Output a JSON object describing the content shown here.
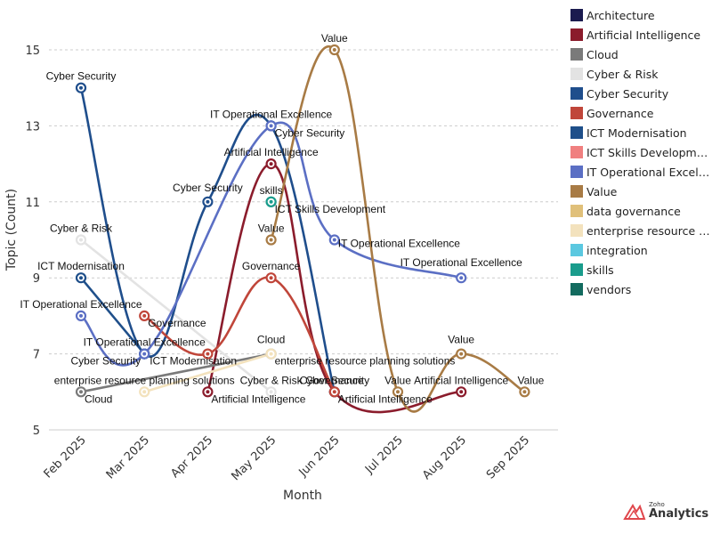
{
  "chart_data": {
    "type": "line",
    "title": "",
    "xlabel": "Month",
    "ylabel": "Topic (Count)",
    "ylim": [
      5,
      15
    ],
    "yticks": [
      5,
      7,
      9,
      11,
      13,
      15
    ],
    "grid": true,
    "legend_position": "right",
    "categories": [
      "Feb 2025",
      "Mar 2025",
      "Apr 2025",
      "May 2025",
      "Jun 2025",
      "Jul 2025",
      "Aug 2025",
      "Sep 2025"
    ],
    "series": [
      {
        "name": "Architecture",
        "color": "#1b1b4f",
        "values": [
          null,
          null,
          null,
          null,
          null,
          null,
          null,
          null
        ]
      },
      {
        "name": "Artificial Intelligence",
        "color": "#8b1c2c",
        "values": [
          null,
          null,
          6,
          12,
          6,
          null,
          6,
          null
        ]
      },
      {
        "name": "Cloud",
        "color": "#7a7a7a",
        "values": [
          6,
          null,
          null,
          7,
          null,
          null,
          null,
          null
        ]
      },
      {
        "name": "Cyber & Risk",
        "color": "#e3e3e3",
        "values": [
          10,
          null,
          null,
          6,
          null,
          null,
          null,
          null
        ]
      },
      {
        "name": "Cyber Security",
        "color": "#1f4e8c",
        "values": [
          14,
          7,
          11,
          13,
          6,
          null,
          null,
          null
        ]
      },
      {
        "name": "Governance",
        "color": "#c0463a",
        "values": [
          null,
          8,
          7,
          9,
          6,
          null,
          null,
          null
        ]
      },
      {
        "name": "ICT Modernisation",
        "color": "#1f4f8a",
        "values": [
          9,
          7,
          null,
          null,
          null,
          null,
          null,
          null
        ]
      },
      {
        "name": "ICT Skills Development",
        "color": "#f08080",
        "values": [
          null,
          null,
          null,
          11,
          null,
          null,
          null,
          null
        ]
      },
      {
        "name": "IT Operational Excellence",
        "color": "#5b6fc4",
        "values": [
          8,
          7,
          null,
          13,
          10,
          null,
          9,
          null
        ]
      },
      {
        "name": "Value",
        "color": "#a87b45",
        "values": [
          null,
          null,
          null,
          10,
          15,
          6,
          7,
          6
        ]
      },
      {
        "name": "data governance",
        "color": "#e0c07a",
        "values": [
          null,
          null,
          null,
          null,
          null,
          null,
          null,
          null
        ]
      },
      {
        "name": "enterprise resource planning solutions",
        "color": "#f3e2bd",
        "values": [
          null,
          6,
          null,
          7,
          null,
          null,
          null,
          null
        ]
      },
      {
        "name": "integration",
        "color": "#5bc8e0",
        "values": [
          null,
          null,
          null,
          null,
          null,
          null,
          null,
          null
        ]
      },
      {
        "name": "skills",
        "color": "#1a9c8c",
        "values": [
          null,
          null,
          null,
          11,
          null,
          null,
          null,
          null
        ]
      },
      {
        "name": "vendors",
        "color": "#136b5f",
        "values": [
          null,
          null,
          null,
          null,
          null,
          null,
          null,
          null
        ]
      }
    ]
  },
  "legend": {
    "items": [
      {
        "label": "Architecture",
        "color": "#1b1b4f"
      },
      {
        "label": "Artificial Intelligence",
        "color": "#8b1c2c"
      },
      {
        "label": "Cloud",
        "color": "#7a7a7a"
      },
      {
        "label": "Cyber & Risk",
        "color": "#e3e3e3"
      },
      {
        "label": "Cyber Security",
        "color": "#1f4e8c"
      },
      {
        "label": "Governance",
        "color": "#c0463a"
      },
      {
        "label": "ICT Modernisation",
        "color": "#1f4f8a"
      },
      {
        "label": "ICT Skills Developme...",
        "color": "#f08080"
      },
      {
        "label": "IT Operational Excell...",
        "color": "#5b6fc4"
      },
      {
        "label": "Value",
        "color": "#a87b45"
      },
      {
        "label": "data governance",
        "color": "#e0c07a"
      },
      {
        "label": "enterprise resource p...",
        "color": "#f3e2bd"
      },
      {
        "label": "integration",
        "color": "#5bc8e0"
      },
      {
        "label": "skills",
        "color": "#1a9c8c"
      },
      {
        "label": "vendors",
        "color": "#136b5f"
      }
    ]
  },
  "brand": {
    "small": "Zoho",
    "big": "Analytics"
  }
}
